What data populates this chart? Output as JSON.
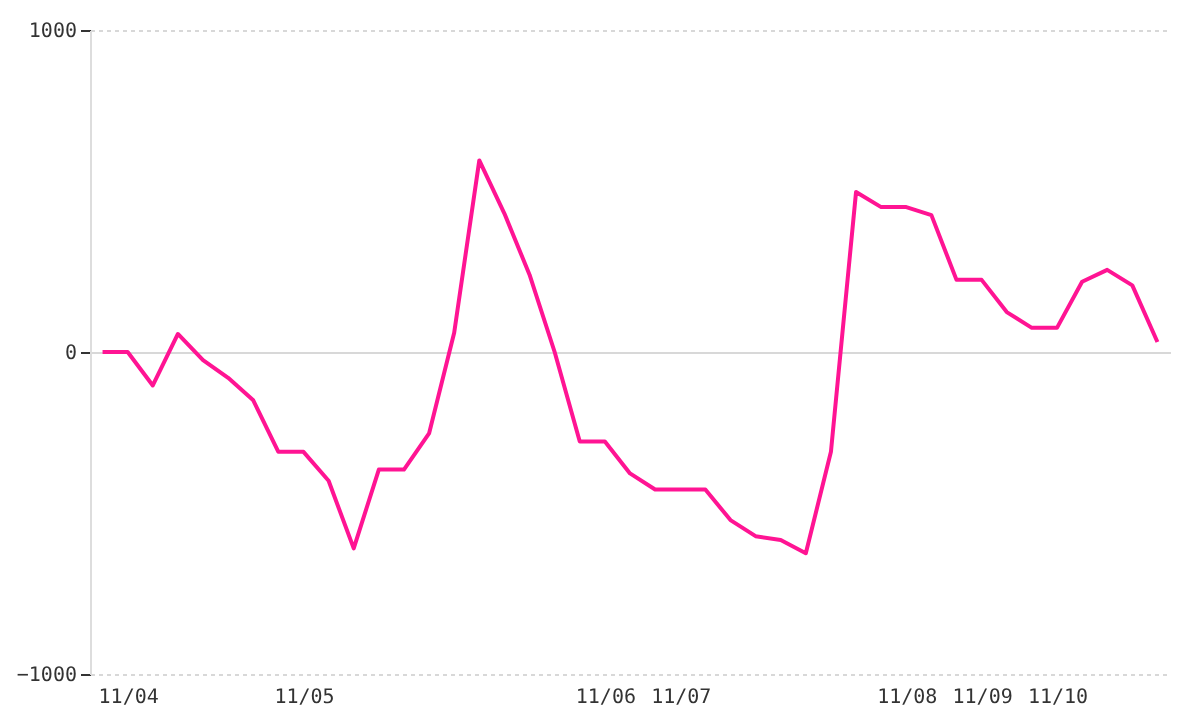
{
  "chart_data": {
    "type": "line",
    "categories": [
      null,
      "11/04",
      null,
      null,
      null,
      null,
      null,
      null,
      "11/05",
      null,
      null,
      null,
      null,
      null,
      null,
      null,
      null,
      null,
      null,
      null,
      "11/06",
      null,
      null,
      "11/07",
      null,
      null,
      null,
      null,
      null,
      null,
      null,
      null,
      "11/08",
      null,
      null,
      "11/09",
      null,
      null,
      "11/10",
      null,
      null,
      null,
      null
    ],
    "series": [
      {
        "color": "#ff1493",
        "values": [
          0,
          0,
          -104,
          56,
          -25,
          -80,
          -150,
          -310,
          -310,
          -400,
          -610,
          -365,
          -365,
          -253,
          60,
          595,
          430,
          240,
          0,
          -278,
          -278,
          -377,
          -427,
          -427,
          -427,
          -522,
          -572,
          -584,
          -625,
          -310,
          497,
          450,
          450,
          425,
          224,
          224,
          124,
          75,
          75,
          218,
          255,
          207,
          31
        ]
      }
    ],
    "ylim": [
      -1000,
      1000
    ],
    "yticks": [
      -1000,
      0,
      1000
    ],
    "grid": "y"
  }
}
